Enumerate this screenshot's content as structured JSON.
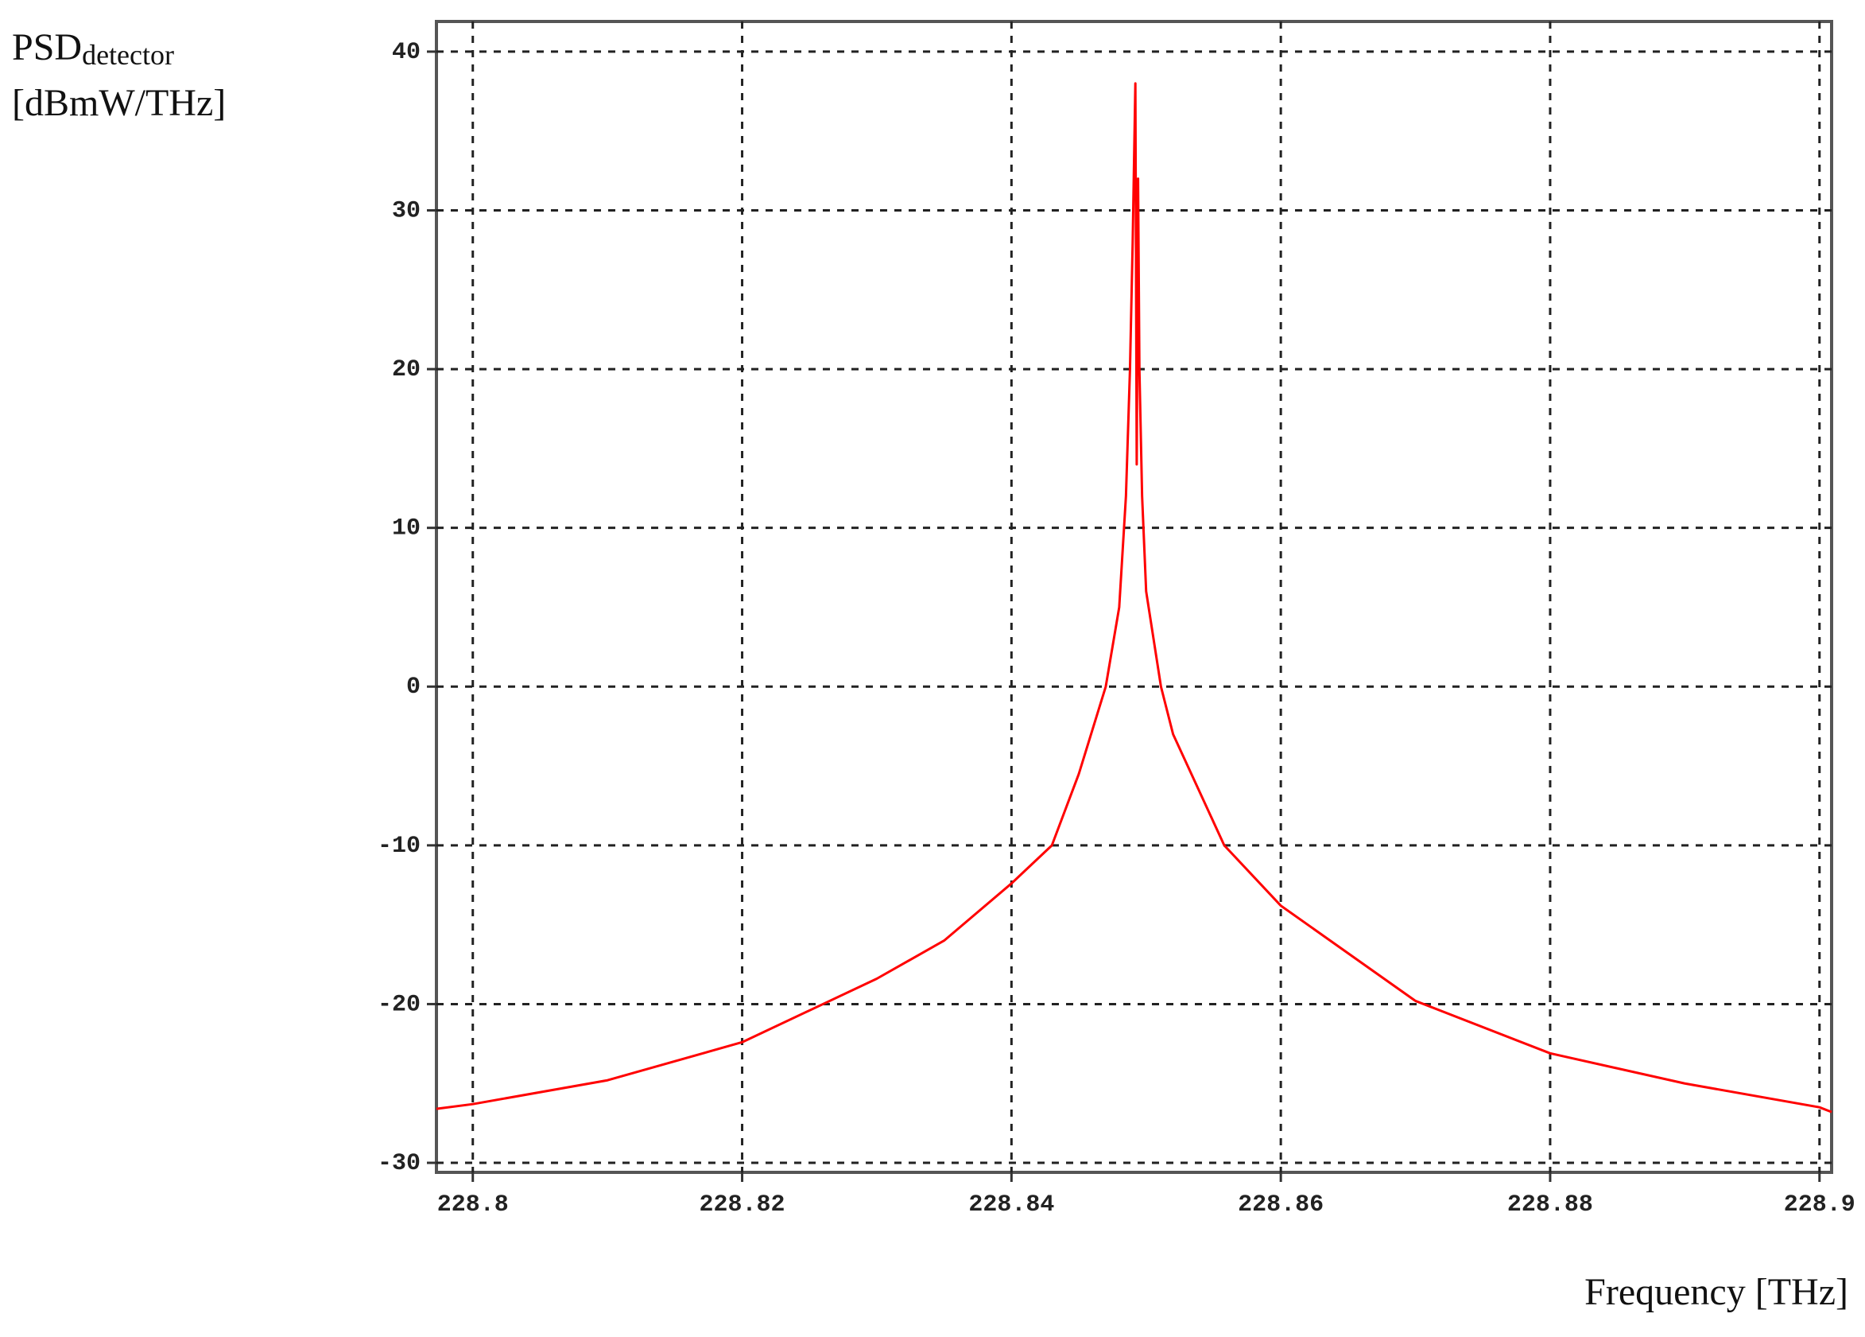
{
  "chart_data": {
    "type": "line",
    "ylabel": {
      "main": "PSD",
      "sub": "detector",
      "unit": "[dBmW/THz]"
    },
    "xlabel": "Frequency [THz]",
    "x": [
      228.7973,
      228.8,
      228.81,
      228.82,
      228.83,
      228.835,
      228.84,
      228.843,
      228.845,
      228.847,
      228.848,
      228.8485,
      228.8488,
      228.849,
      228.8492,
      228.8493,
      228.8494,
      228.8495,
      228.8497,
      228.85,
      228.8511,
      228.852,
      228.8558,
      228.86,
      228.87,
      228.88,
      228.89,
      228.9,
      228.9009
    ],
    "values": [
      -26.6,
      -26.3,
      -24.8,
      -22.4,
      -18.4,
      -16,
      -12.4,
      -10,
      -5.5,
      0,
      5,
      12,
      20,
      28,
      38,
      14,
      32,
      20,
      12,
      6,
      0,
      -3,
      -10,
      -13.8,
      -19.8,
      -23.1,
      -25,
      -26.5,
      -26.8
    ],
    "color": "#ff0000",
    "xlim": [
      228.7973,
      228.9009
    ],
    "ylim": [
      -30.6,
      41.9
    ],
    "xticks": [
      228.8,
      228.82,
      228.84,
      228.86,
      228.88,
      228.9
    ],
    "yticks": [
      40,
      30,
      20,
      10,
      0,
      -10,
      -20,
      -30
    ],
    "grid": true
  }
}
